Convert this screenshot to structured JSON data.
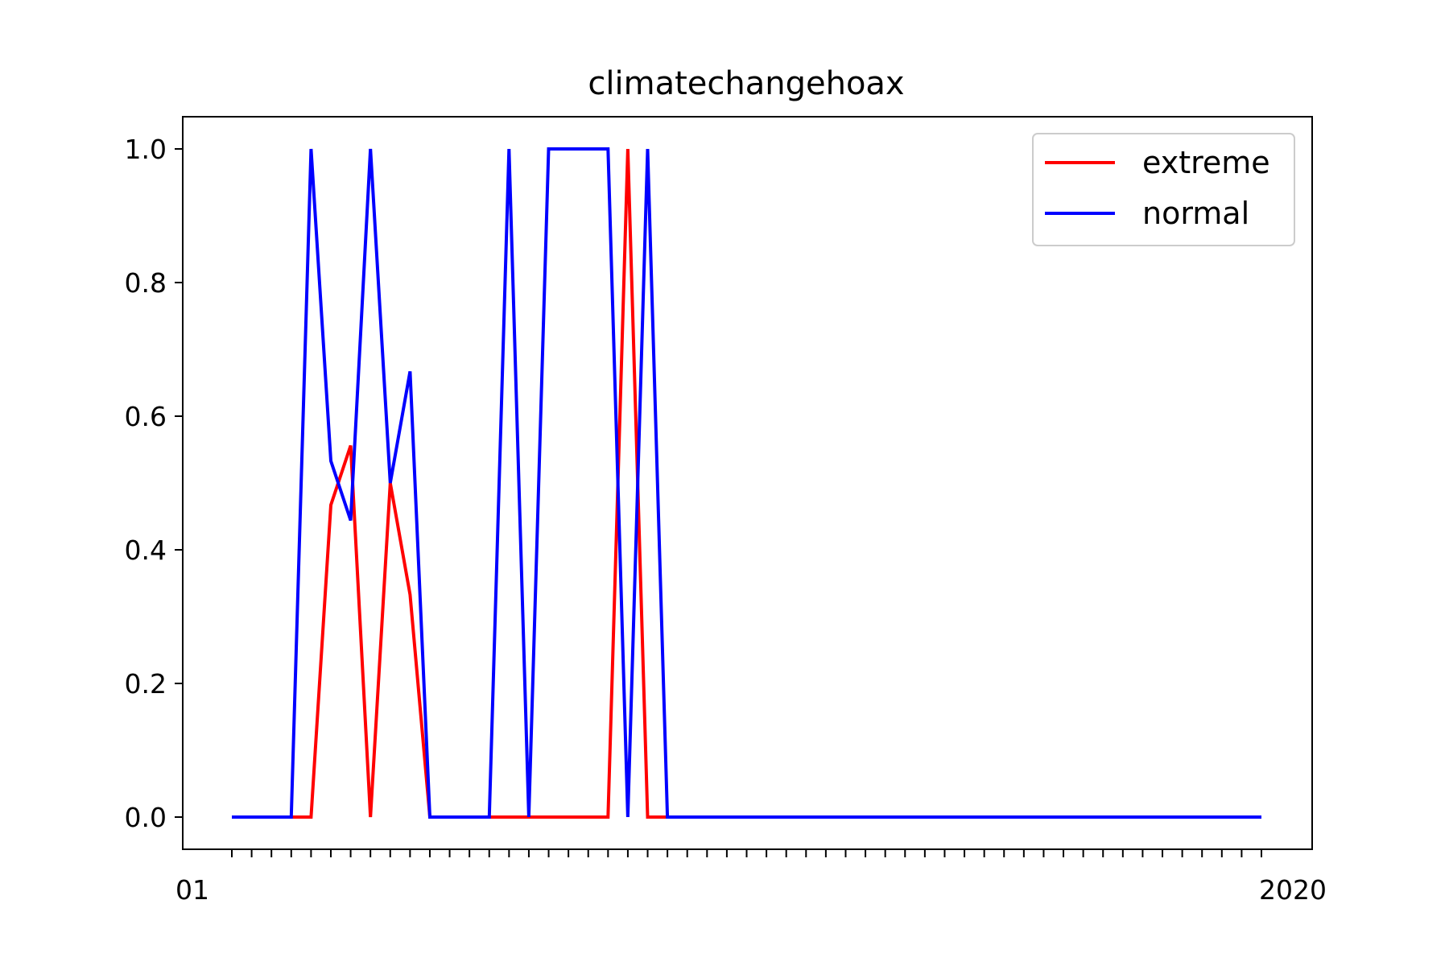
{
  "chart_data": {
    "type": "line",
    "title": "climatechangehoax",
    "xlabel": "",
    "ylabel": "",
    "ylim": [
      -0.05,
      1.05
    ],
    "yticks": [
      "0.0",
      "0.2",
      "0.4",
      "0.6",
      "0.8",
      "1.0"
    ],
    "xticks_visible_text": [
      "01",
      "2020"
    ],
    "legend_position": "upper right",
    "series": [
      {
        "name": "extreme",
        "color": "#ff0000",
        "values": [
          0,
          0,
          0,
          0,
          0,
          0.467,
          0.556,
          0,
          0.5,
          0.333,
          0,
          0,
          0,
          0,
          0,
          0,
          0,
          0,
          0,
          0,
          1,
          0,
          0,
          0,
          0,
          0,
          0,
          0,
          0,
          0,
          0,
          0,
          0,
          0,
          0,
          0,
          0,
          0,
          0,
          0,
          0,
          0,
          0,
          0,
          0,
          0,
          0,
          0,
          0,
          0,
          0,
          0,
          0
        ]
      },
      {
        "name": "normal",
        "color": "#0000ff",
        "values": [
          0,
          0,
          0,
          0,
          1,
          0.533,
          0.444,
          1,
          0.5,
          0.667,
          0,
          0,
          0,
          0,
          1,
          0,
          1,
          1,
          1,
          1,
          0,
          1,
          0,
          0,
          0,
          0,
          0,
          0,
          0,
          0,
          0,
          0,
          0,
          0,
          0,
          0,
          0,
          0,
          0,
          0,
          0,
          0,
          0,
          0,
          0,
          0,
          0,
          0,
          0,
          0,
          0,
          0,
          0
        ]
      }
    ]
  }
}
